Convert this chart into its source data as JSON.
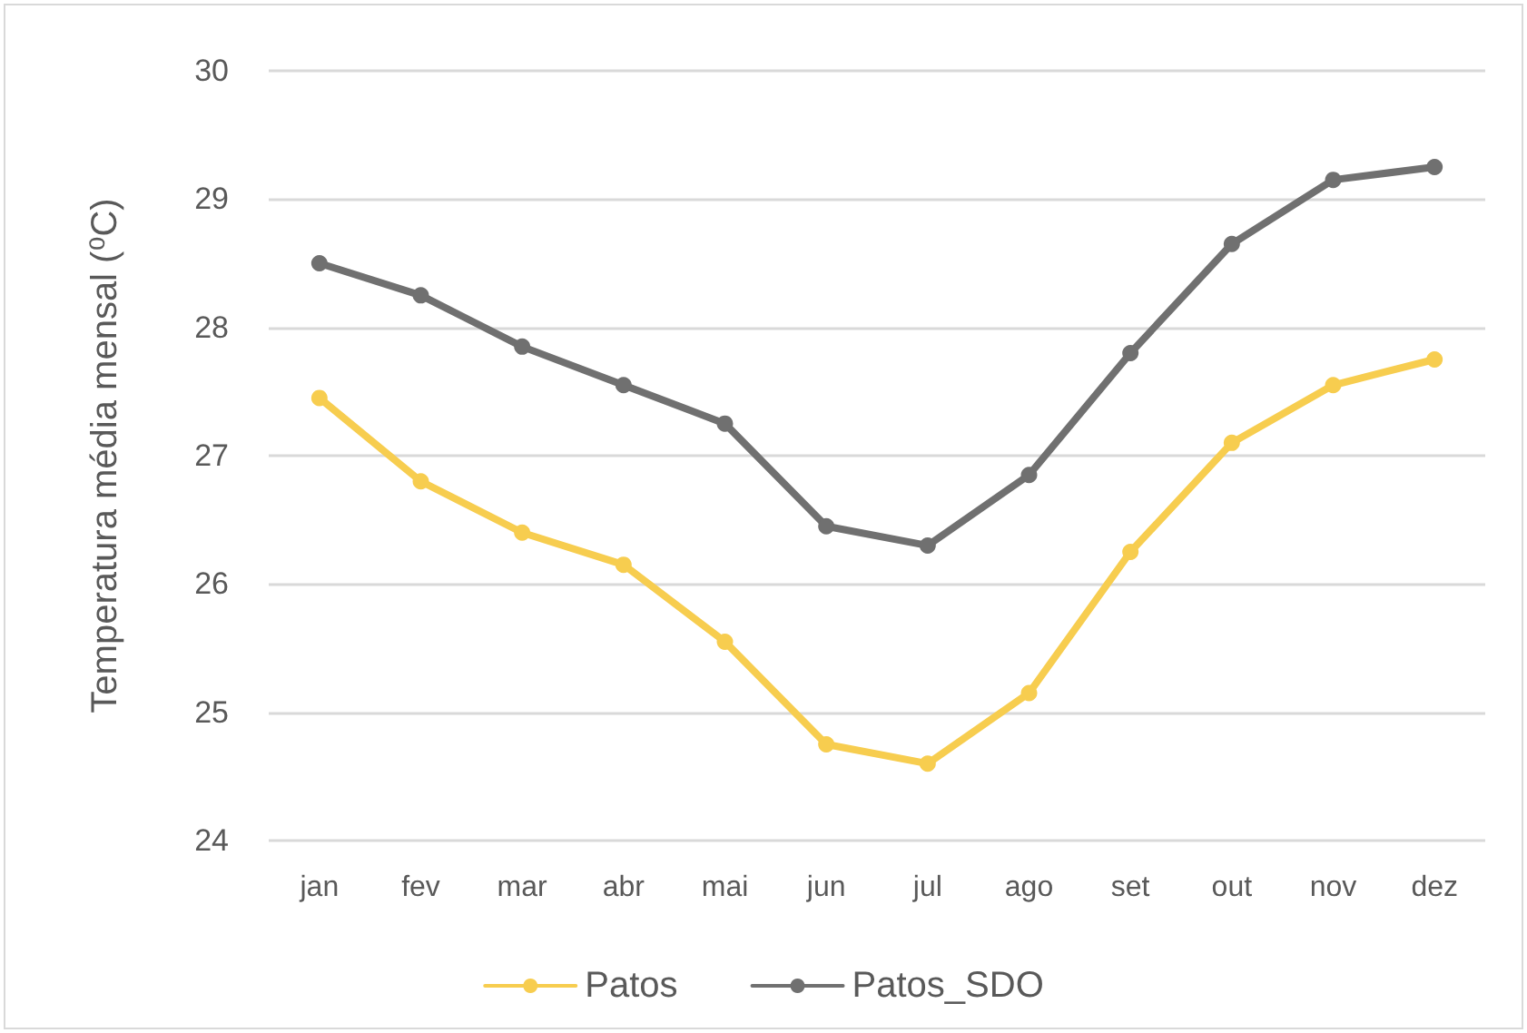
{
  "chart_data": {
    "type": "line",
    "ylabel": "Temperatura média mensal (⁰C)",
    "categories": [
      "jan",
      "fev",
      "mar",
      "abr",
      "mai",
      "jun",
      "jul",
      "ago",
      "set",
      "out",
      "nov",
      "dez"
    ],
    "series": [
      {
        "name": "Patos",
        "color": "#f7cd4f",
        "values": [
          27.45,
          26.8,
          26.4,
          26.15,
          25.55,
          24.75,
          24.6,
          25.15,
          26.25,
          27.1,
          27.55,
          27.75
        ]
      },
      {
        "name": "Patos_SDO",
        "color": "#707070",
        "values": [
          28.5,
          28.25,
          27.85,
          27.55,
          27.25,
          26.45,
          26.3,
          26.85,
          27.8,
          28.65,
          29.15,
          29.25
        ]
      }
    ],
    "ylim": [
      24,
      30
    ],
    "yticks": [
      24,
      25,
      26,
      27,
      28,
      29,
      30
    ],
    "grid": "y",
    "legend": "bottom",
    "marker": "circle",
    "line_style": "solid"
  }
}
